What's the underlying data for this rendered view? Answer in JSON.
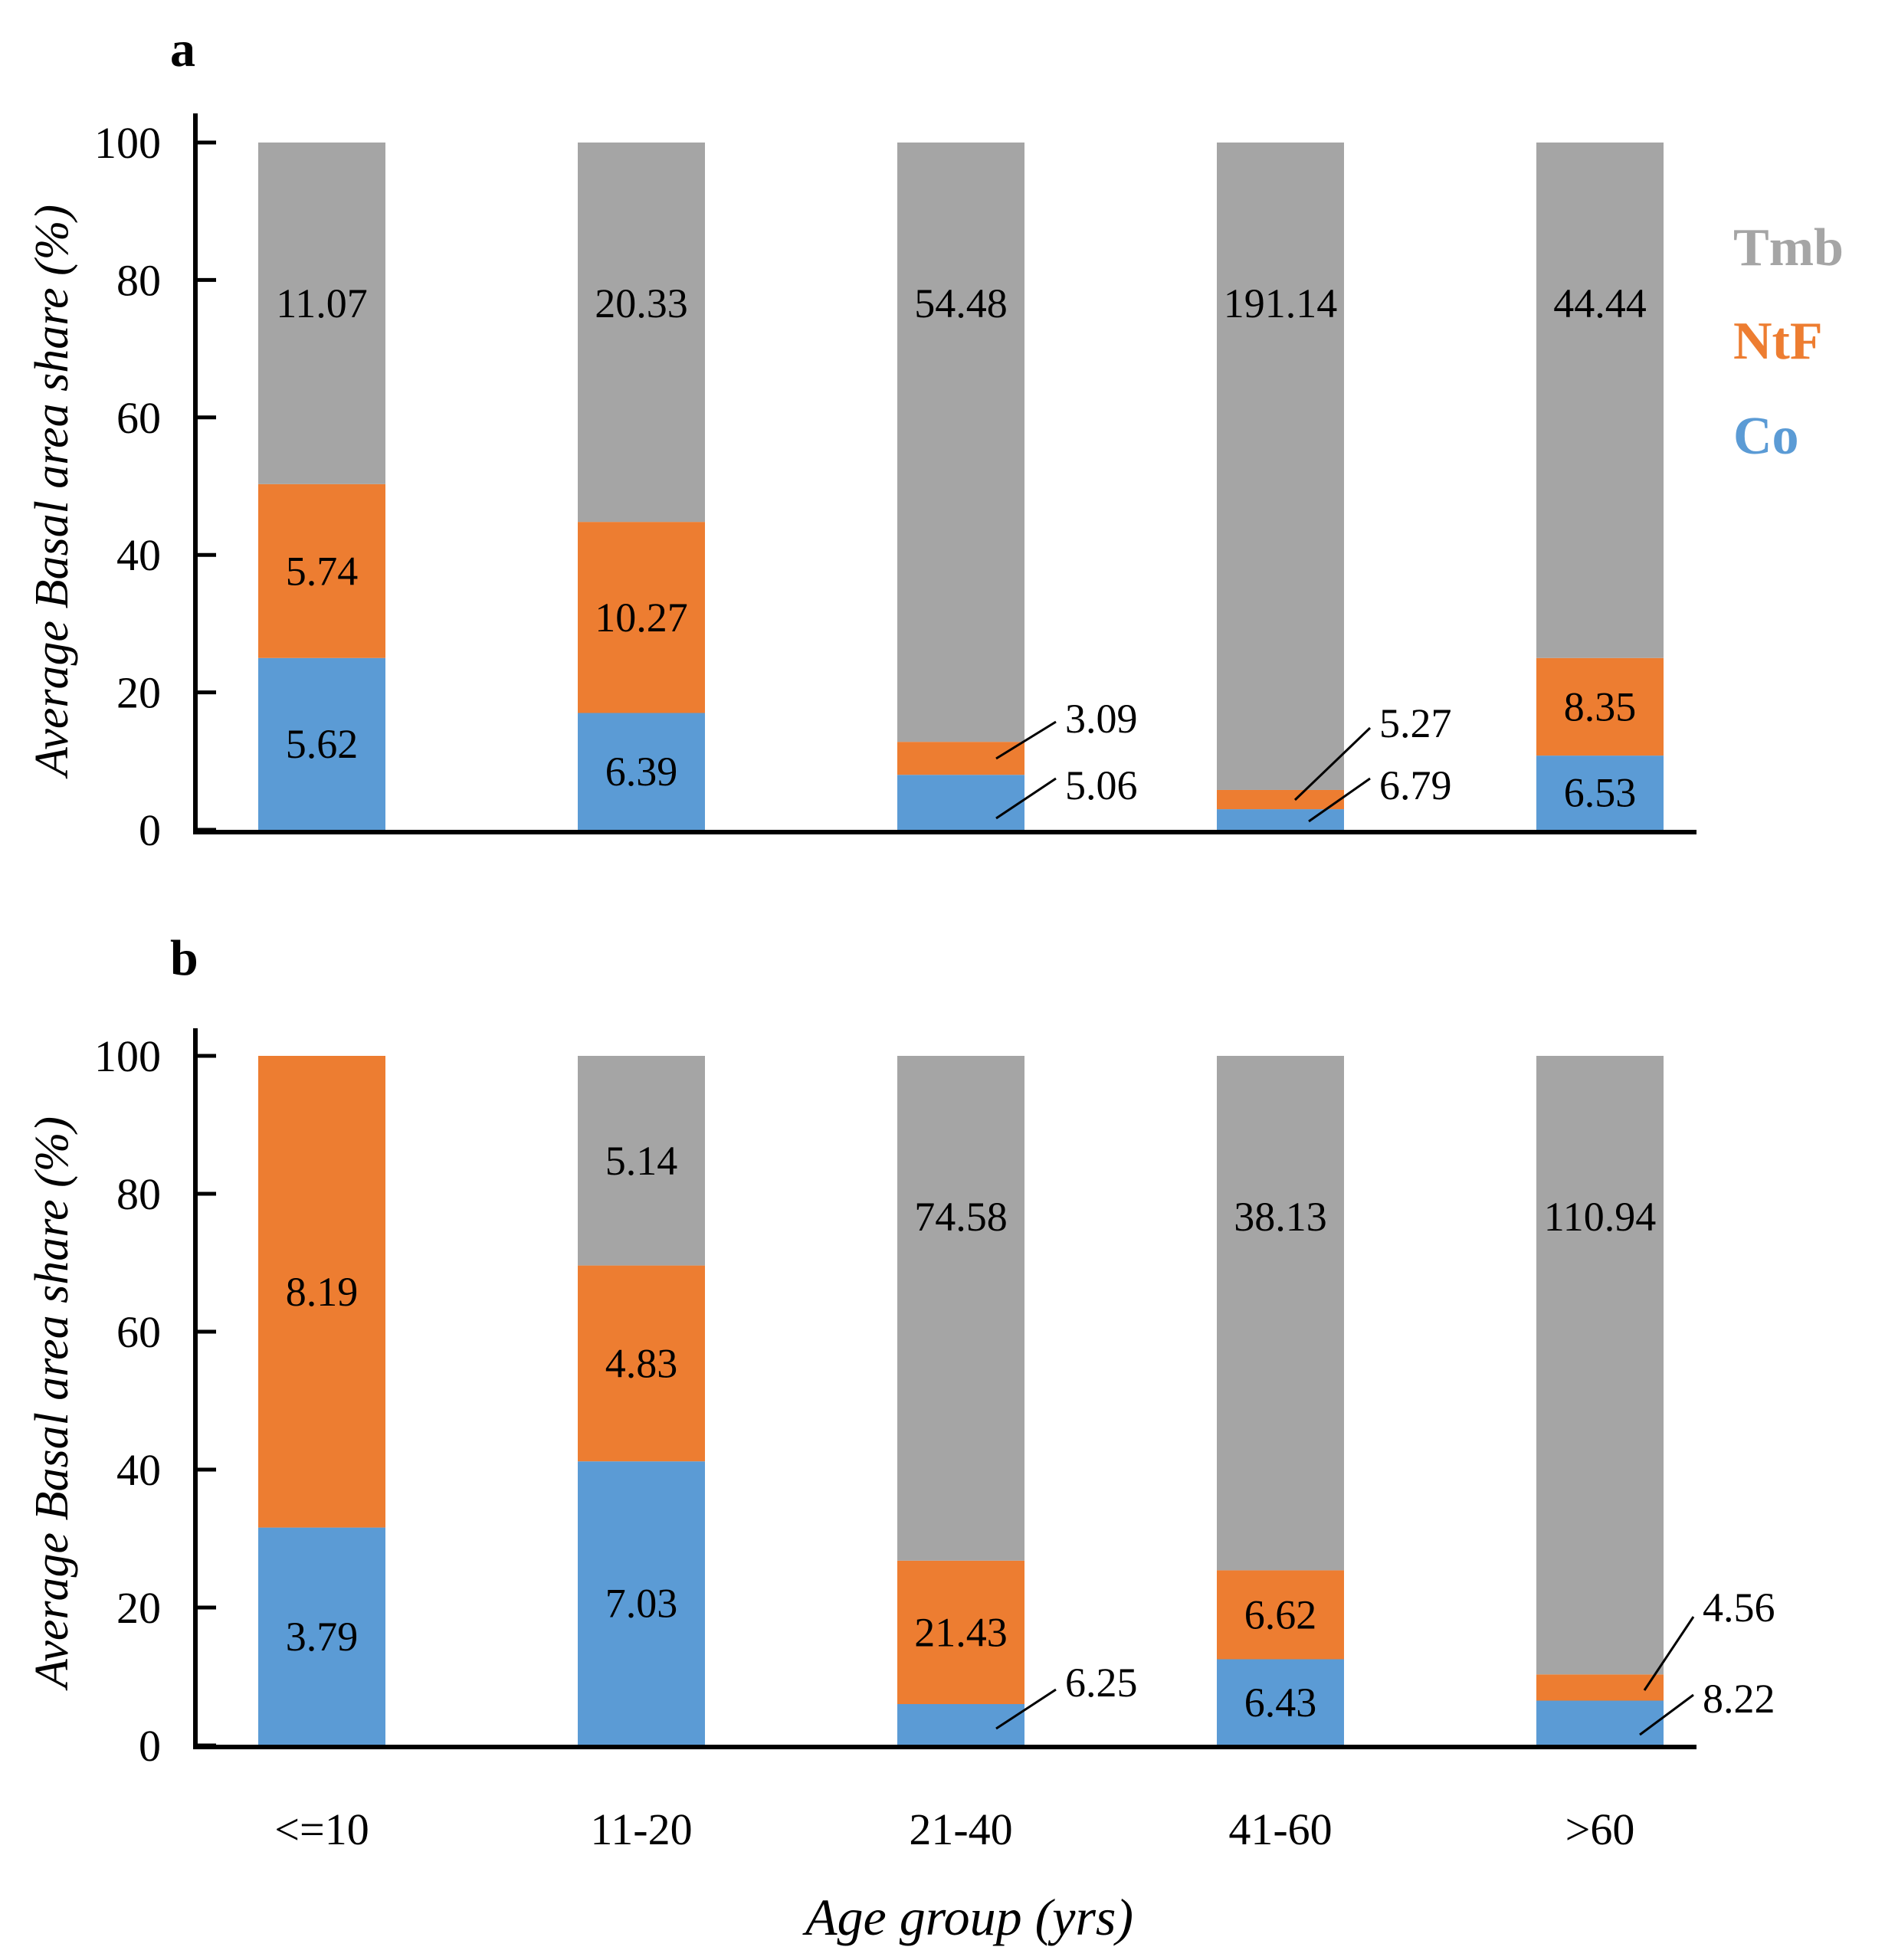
{
  "chart_data": {
    "type": "bar",
    "stacked": true,
    "categories": [
      "<=10",
      "11-20",
      "21-40",
      "41-60",
      ">60"
    ],
    "xlabel": "Age group (yrs)",
    "ylabel": "Average Basal area share (%)",
    "ylim": [
      0,
      100
    ],
    "yticks": [
      0,
      20,
      40,
      60,
      80,
      100
    ],
    "grid": false,
    "legend": {
      "placement": "right",
      "items": [
        {
          "name": "Tmb",
          "color": "#A5A5A5"
        },
        {
          "name": "NtF",
          "color": "#ED7D31"
        },
        {
          "name": "Co",
          "color": "#5B9BD5"
        }
      ]
    },
    "panels": [
      {
        "letter": "a",
        "series": [
          {
            "name": "Co",
            "color": "#5B9BD5",
            "values": [
              25,
              17,
              8,
              3,
              10.8
            ],
            "labels": [
              "5.62",
              "6.39",
              "5.06",
              "6.79",
              "6.53"
            ]
          },
          {
            "name": "NtF",
            "color": "#ED7D31",
            "values": [
              25.3,
              27.8,
              4.8,
              2.8,
              14.2
            ],
            "labels": [
              "5.74",
              "10.27",
              "3.09",
              "5.27",
              "8.35"
            ]
          },
          {
            "name": "Tmb",
            "color": "#A5A5A5",
            "values": [
              49.7,
              55.2,
              87.2,
              94.2,
              75
            ],
            "labels": [
              "11.07",
              "20.33",
              "54.48",
              "191.14",
              "44.44"
            ]
          }
        ]
      },
      {
        "letter": "b",
        "series": [
          {
            "name": "Co",
            "color": "#5B9BD5",
            "values": [
              31.6,
              41.2,
              6,
              12.5,
              6.5
            ],
            "labels": [
              "3.79",
              "7.03",
              "6.25",
              "6.43",
              "8.22"
            ]
          },
          {
            "name": "NtF",
            "color": "#ED7D31",
            "values": [
              68.4,
              28.4,
              20.8,
              12.9,
              3.8
            ],
            "labels": [
              "8.19",
              "4.83",
              "21.43",
              "6.62",
              "4.56"
            ]
          },
          {
            "name": "Tmb",
            "color": "#A5A5A5",
            "values": [
              0,
              30.4,
              73.2,
              74.6,
              89.7
            ],
            "labels": [
              "",
              "5.14",
              "74.58",
              "38.13",
              "110.94"
            ]
          }
        ]
      }
    ]
  }
}
